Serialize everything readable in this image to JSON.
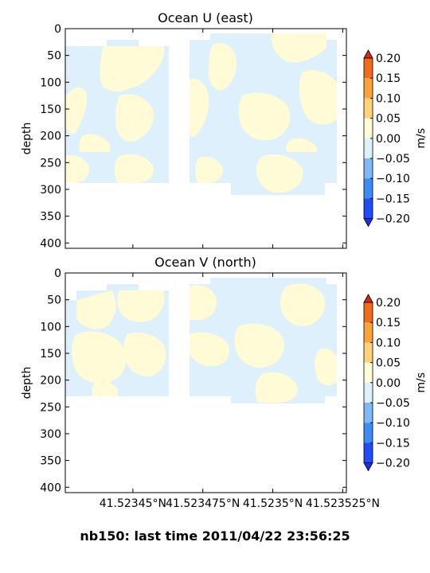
{
  "figure": {
    "suptitle": "nb150: last time 2011/04/22 23:56:25"
  },
  "colorbar": {
    "ticks": [
      "0.20",
      "0.15",
      "0.10",
      "0.05",
      "0.00",
      "−0.05",
      "−0.10",
      "−0.15",
      "−0.20"
    ],
    "levels": [
      -0.2,
      -0.15,
      -0.1,
      -0.05,
      0.0,
      0.05,
      0.1,
      0.15,
      0.2
    ],
    "colors": [
      "#1f4dfa",
      "#3c8cf6",
      "#7db9f6",
      "#ddf0fc",
      "#fffbd6",
      "#ffd27a",
      "#fca33a",
      "#f26a1c"
    ],
    "extend_low": "#1a2ee6",
    "extend_high": "#d62a14",
    "label": "m/s"
  },
  "chart_data": [
    {
      "type": "heatmap",
      "title": "Ocean U (east)",
      "ylabel": "depth",
      "yticks": [
        "0",
        "50",
        "100",
        "150",
        "200",
        "250",
        "300",
        "350",
        "400"
      ],
      "ylim": [
        410,
        0
      ],
      "xticks": [],
      "x_tick_values": [
        0.2404,
        0.4893,
        0.7381,
        0.987
      ],
      "value_range": [
        -0.05,
        0.05
      ],
      "dominant_bins": [
        "-0.05 to 0.00",
        "0.00 to 0.05"
      ]
    },
    {
      "type": "heatmap",
      "title": "Ocean V (north)",
      "ylabel": "depth",
      "yticks": [
        "0",
        "50",
        "100",
        "150",
        "200",
        "250",
        "300",
        "350",
        "400"
      ],
      "ylim": [
        410,
        0
      ],
      "xticks": [
        "41.52345°N",
        "41.523475°N",
        "41.5235°N",
        "41.523525°N"
      ],
      "x_tick_values": [
        0.2404,
        0.4893,
        0.7381,
        0.987
      ],
      "value_range": [
        -0.05,
        0.05
      ],
      "dominant_bins": [
        "-0.05 to 0.00",
        "0.00 to 0.05"
      ]
    }
  ]
}
